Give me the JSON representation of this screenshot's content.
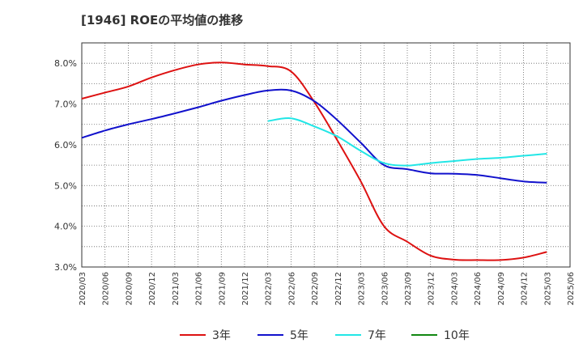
{
  "chart_data": {
    "type": "line",
    "title": "[1946]  ROEの平均値の推移",
    "xlabel": "",
    "ylabel": "",
    "ylim": [
      3.0,
      8.5
    ],
    "yticks": [
      "3.0%",
      "4.0%",
      "5.0%",
      "6.0%",
      "7.0%",
      "8.0%"
    ],
    "grid": true,
    "legend_position": "bottom",
    "categories": [
      "2020/03",
      "2020/06",
      "2020/09",
      "2020/12",
      "2021/03",
      "2021/06",
      "2021/09",
      "2021/12",
      "2022/03",
      "2022/06",
      "2022/09",
      "2022/12",
      "2023/03",
      "2023/06",
      "2023/09",
      "2023/12",
      "2024/03",
      "2024/06",
      "2024/09",
      "2024/12",
      "2025/03",
      "2025/06"
    ],
    "series": [
      {
        "name": "3年",
        "color": "#dd1111",
        "values": [
          7.13,
          7.28,
          7.43,
          7.65,
          7.83,
          7.97,
          8.02,
          7.97,
          7.93,
          7.8,
          7.05,
          6.1,
          5.1,
          4.0,
          3.62,
          3.28,
          3.18,
          3.17,
          3.17,
          3.23,
          3.37,
          null
        ]
      },
      {
        "name": "5年",
        "color": "#1111cc",
        "values": [
          6.17,
          6.35,
          6.5,
          6.63,
          6.77,
          6.92,
          7.08,
          7.22,
          7.33,
          7.33,
          7.07,
          6.6,
          6.05,
          5.5,
          5.4,
          5.3,
          5.29,
          5.26,
          5.18,
          5.1,
          5.07,
          null
        ]
      },
      {
        "name": "7年",
        "color": "#22e6e6",
        "values": [
          null,
          null,
          null,
          null,
          null,
          null,
          null,
          null,
          6.58,
          6.65,
          6.45,
          6.2,
          5.85,
          5.55,
          5.49,
          5.55,
          5.6,
          5.65,
          5.68,
          5.73,
          5.78,
          null
        ]
      },
      {
        "name": "10年",
        "color": "#118811",
        "values": [
          null,
          null,
          null,
          null,
          null,
          null,
          null,
          null,
          null,
          null,
          null,
          null,
          null,
          null,
          null,
          null,
          null,
          null,
          null,
          null,
          null,
          null
        ]
      }
    ]
  }
}
